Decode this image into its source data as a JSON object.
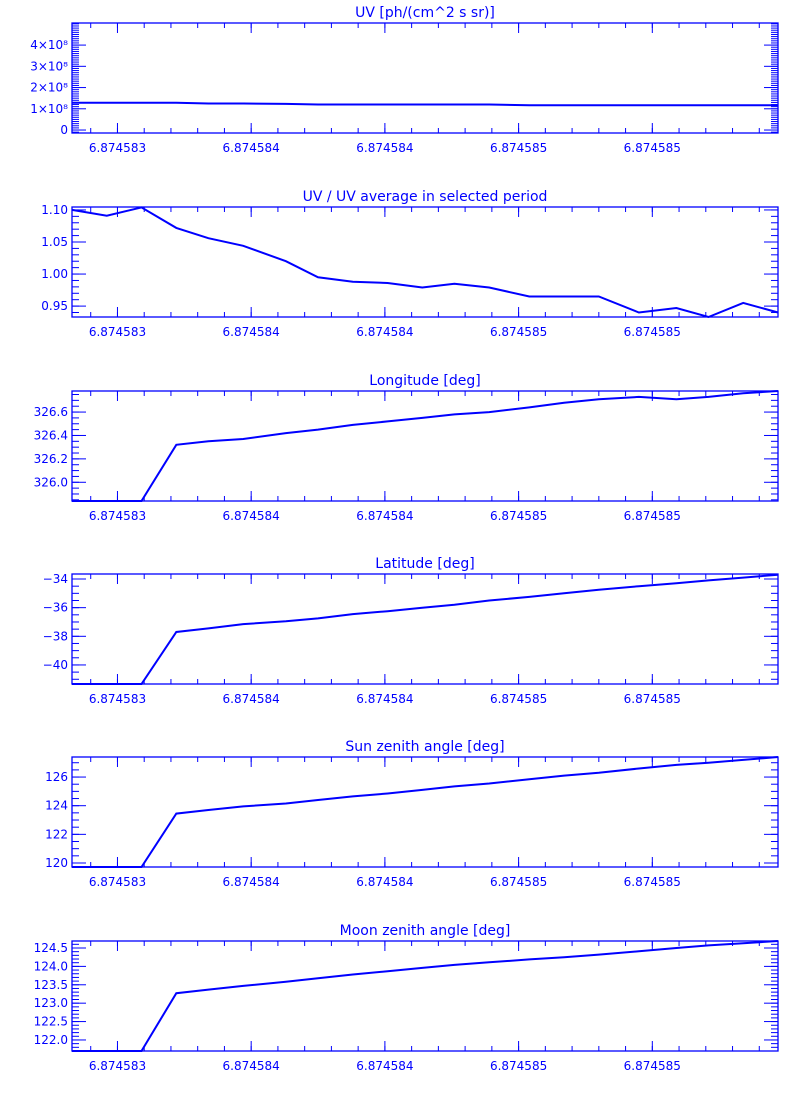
{
  "color": "#0000ff",
  "x_tick_values": [
    6.874583,
    6.8745835,
    6.874584,
    6.8745845,
    6.874585
  ],
  "x_tick_labels": [
    "6.874583",
    "6.874584",
    "6.874584",
    "6.874585",
    "6.874585"
  ],
  "x_minor_step": 1e-07,
  "chart_data": [
    {
      "type": "line",
      "title": "UV [ph/(cm^2 s sr)]",
      "xlim": [
        6.87458283,
        6.87458547
      ],
      "ylim": [
        -14000000,
        504000000
      ],
      "y_ticks": [
        0,
        100000000,
        200000000,
        300000000,
        400000000
      ],
      "y_tick_labels": [
        "0",
        "1×10⁸",
        "2×10⁸",
        "3×10⁸",
        "4×10⁸"
      ],
      "y_minor_step": 10000000,
      "x": [
        6.87458283,
        6.87458296,
        6.87458309,
        6.87458322,
        6.87458334,
        6.87458347,
        6.87458363,
        6.87458375,
        6.87458388,
        6.87458401,
        6.87458414,
        6.87458426,
        6.87458439,
        6.87458454,
        6.87458467,
        6.8745848,
        6.87458495,
        6.87458509,
        6.87458521,
        6.87458534,
        6.87458547
      ],
      "y": [
        128000000,
        128000000,
        128000000,
        128000000,
        125000000,
        125000000,
        123000000,
        120000000,
        120000000,
        120000000,
        120000000,
        120000000,
        120000000,
        117000000,
        117000000,
        117000000,
        117000000,
        117000000,
        117000000,
        117000000,
        117000000
      ]
    },
    {
      "type": "line",
      "title": "UV / UV average in selected period",
      "xlim": [
        6.87458283,
        6.87458547
      ],
      "ylim": [
        0.933,
        1.1046
      ],
      "y_ticks": [
        0.95,
        1.0,
        1.05,
        1.1
      ],
      "y_tick_labels": [
        "0.95",
        "1.00",
        "1.05",
        "1.10"
      ],
      "y_minor_step": 0.01,
      "x": [
        6.87458283,
        6.87458296,
        6.87458309,
        6.87458322,
        6.87458334,
        6.87458347,
        6.87458363,
        6.87458375,
        6.87458388,
        6.87458401,
        6.87458414,
        6.87458426,
        6.87458439,
        6.87458454,
        6.87458467,
        6.8745848,
        6.87458495,
        6.87458509,
        6.87458521,
        6.87458534,
        6.87458547
      ],
      "y": [
        1.1,
        1.091,
        1.104,
        1.072,
        1.056,
        1.044,
        1.02,
        0.995,
        0.988,
        0.986,
        0.979,
        0.985,
        0.979,
        0.965,
        0.965,
        0.965,
        0.94,
        0.947,
        0.933,
        0.955,
        0.94
      ]
    },
    {
      "type": "line",
      "title": "Longitude [deg]",
      "xlim": [
        6.87458283,
        6.87458547
      ],
      "ylim": [
        325.84,
        326.78
      ],
      "y_ticks": [
        326.0,
        326.2,
        326.4,
        326.6
      ],
      "y_tick_labels": [
        "326.0",
        "326.2",
        "326.4",
        "326.6"
      ],
      "y_minor_step": 0.05,
      "x": [
        6.87458283,
        6.87458296,
        6.87458309,
        6.87458322,
        6.87458334,
        6.87458347,
        6.87458363,
        6.87458375,
        6.87458388,
        6.87458401,
        6.87458414,
        6.87458426,
        6.87458439,
        6.87458454,
        6.87458467,
        6.8745848,
        6.87458495,
        6.87458509,
        6.87458521,
        6.87458534,
        6.87458547
      ],
      "y": [
        325.84,
        325.84,
        325.84,
        326.32,
        326.35,
        326.37,
        326.42,
        326.45,
        326.49,
        326.52,
        326.55,
        326.58,
        326.6,
        326.64,
        326.68,
        326.71,
        326.73,
        326.71,
        326.73,
        326.76,
        326.78
      ]
    },
    {
      "type": "line",
      "title": "Latitude [deg]",
      "xlim": [
        6.87458283,
        6.87458547
      ],
      "ylim": [
        -41.33,
        -33.65
      ],
      "y_ticks": [
        -40,
        -38,
        -36,
        -34
      ],
      "y_tick_labels": [
        "−40",
        "−38",
        "−36",
        "−34"
      ],
      "y_minor_step": 0.5,
      "x": [
        6.87458283,
        6.87458296,
        6.87458309,
        6.87458322,
        6.87458334,
        6.87458347,
        6.87458363,
        6.87458375,
        6.87458388,
        6.87458401,
        6.87458414,
        6.87458426,
        6.87458439,
        6.87458454,
        6.87458467,
        6.8745848,
        6.87458495,
        6.87458509,
        6.87458521,
        6.87458534,
        6.87458547
      ],
      "y": [
        -41.33,
        -41.33,
        -41.33,
        -37.7,
        -37.45,
        -37.15,
        -36.95,
        -36.75,
        -36.45,
        -36.25,
        -36.0,
        -35.8,
        -35.5,
        -35.25,
        -35.0,
        -34.75,
        -34.5,
        -34.3,
        -34.1,
        -33.9,
        -33.7
      ]
    },
    {
      "type": "line",
      "title": "Sun zenith angle [deg]",
      "xlim": [
        6.87458283,
        6.87458547
      ],
      "ylim": [
        119.72,
        127.4
      ],
      "y_ticks": [
        120,
        122,
        124,
        126
      ],
      "y_tick_labels": [
        "120",
        "122",
        "124",
        "126"
      ],
      "y_minor_step": 0.5,
      "x": [
        6.87458283,
        6.87458296,
        6.87458309,
        6.87458322,
        6.87458334,
        6.87458347,
        6.87458363,
        6.87458375,
        6.87458388,
        6.87458401,
        6.87458414,
        6.87458426,
        6.87458439,
        6.87458454,
        6.87458467,
        6.8745848,
        6.87458495,
        6.87458509,
        6.87458521,
        6.87458534,
        6.87458547
      ],
      "y": [
        119.72,
        119.72,
        119.72,
        123.45,
        123.7,
        123.95,
        124.15,
        124.4,
        124.65,
        124.85,
        125.1,
        125.35,
        125.55,
        125.85,
        126.1,
        126.3,
        126.6,
        126.85,
        127.0,
        127.2,
        127.4
      ]
    },
    {
      "type": "line",
      "title": "Moon zenith angle [deg]",
      "xlim": [
        6.87458283,
        6.87458547
      ],
      "ylim": [
        121.7,
        124.69
      ],
      "y_ticks": [
        122.0,
        122.5,
        123.0,
        123.5,
        124.0,
        124.5
      ],
      "y_tick_labels": [
        "122.0",
        "122.5",
        "123.0",
        "123.5",
        "124.0",
        "124.5"
      ],
      "y_minor_step": 0.1,
      "x": [
        6.87458283,
        6.87458296,
        6.87458309,
        6.87458322,
        6.87458334,
        6.87458347,
        6.87458363,
        6.87458375,
        6.87458388,
        6.87458401,
        6.87458414,
        6.87458426,
        6.87458439,
        6.87458454,
        6.87458467,
        6.8745848,
        6.87458495,
        6.87458509,
        6.87458521,
        6.87458534,
        6.87458547
      ],
      "y": [
        121.7,
        121.7,
        121.7,
        123.27,
        123.37,
        123.47,
        123.58,
        123.68,
        123.78,
        123.87,
        123.96,
        124.04,
        124.11,
        124.19,
        124.25,
        124.32,
        124.41,
        124.5,
        124.57,
        124.63,
        124.69
      ]
    }
  ]
}
